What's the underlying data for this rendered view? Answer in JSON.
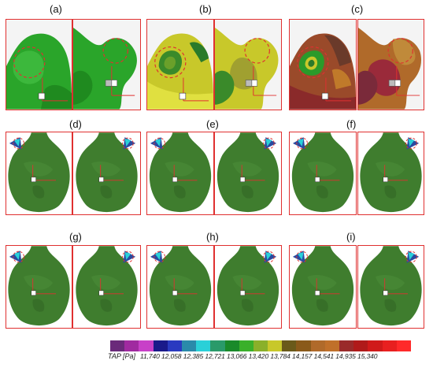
{
  "panels": {
    "a": "(a)",
    "b": "(b)",
    "c": "(c)",
    "d": "(d)",
    "e": "(e)",
    "f": "(f)",
    "g": "(g)",
    "h": "(h)",
    "i": "(i)"
  },
  "legend": {
    "title": "TAP [Pa]",
    "values": "11,740 12,058 12,385 12,721 13,066 13,420 13,784 14,157 14,541 14,935 15,340",
    "colors": [
      "#6a2a7a",
      "#a02aa0",
      "#c840c8",
      "#1a1a8a",
      "#2a3ac0",
      "#2a8aaa",
      "#2ad0d8",
      "#2a9a6a",
      "#1a8a2a",
      "#3ab02a",
      "#8ab02a",
      "#c8c82a",
      "#6a5a1a",
      "#8a5a1a",
      "#b06a2a",
      "#c0702a",
      "#9a2a2a",
      "#b01a1a",
      "#d01a1a",
      "#e82020",
      "#ff2a2a"
    ]
  },
  "colors": {
    "frame": "#e03030",
    "vessel_green": "#3f7d2e",
    "top_green": "#2aa52a",
    "top_yellow": "#c8c82a",
    "top_brown": "#8a4a2a"
  }
}
